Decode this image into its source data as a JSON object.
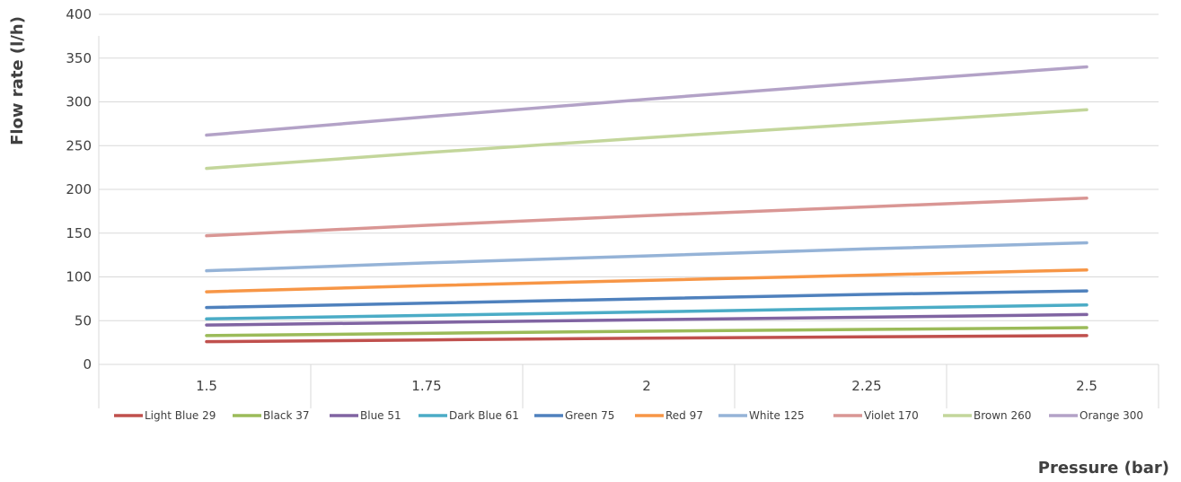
{
  "chart_data": {
    "type": "line",
    "title": "",
    "xlabel": "Pressure (bar)",
    "ylabel": "Flow rate (l/h)",
    "x": [
      "1.5",
      "1.75",
      "2",
      "2.25",
      "2.5"
    ],
    "ylim": [
      0,
      400
    ],
    "yticks": [
      "0",
      "50",
      "100",
      "150",
      "200",
      "250",
      "300",
      "350",
      "400"
    ],
    "grid": "horizontal",
    "legend_position": "bottom",
    "series": [
      {
        "name": "Light Blue 29",
        "color": "#C0504D",
        "values": [
          26,
          28,
          30,
          31.5,
          33
        ]
      },
      {
        "name": "Black 37",
        "color": "#9BBB59",
        "values": [
          33,
          35.5,
          38,
          40,
          42
        ]
      },
      {
        "name": "Blue 51",
        "color": "#8064A2",
        "values": [
          45,
          48,
          51,
          54,
          57
        ]
      },
      {
        "name": "Dark Blue 61",
        "color": "#4BACC6",
        "values": [
          52,
          56,
          60,
          64,
          68
        ]
      },
      {
        "name": "Green 75",
        "color": "#4F81BD",
        "values": [
          65,
          70,
          75,
          80,
          84
        ]
      },
      {
        "name": "Red 97",
        "color": "#F79646",
        "values": [
          83,
          90,
          96,
          102,
          108
        ]
      },
      {
        "name": "White 125",
        "color": "#95B3D7",
        "values": [
          107,
          116,
          124,
          132,
          139
        ]
      },
      {
        "name": "Violet 170",
        "color": "#D99694",
        "values": [
          147,
          159,
          170,
          180,
          190
        ]
      },
      {
        "name": "Brown 260",
        "color": "#C3D69B",
        "values": [
          224,
          242,
          259,
          275,
          291
        ]
      },
      {
        "name": "Orange 300",
        "color": "#B3A2C7",
        "values": [
          262,
          283,
          303,
          322,
          340
        ]
      }
    ]
  }
}
